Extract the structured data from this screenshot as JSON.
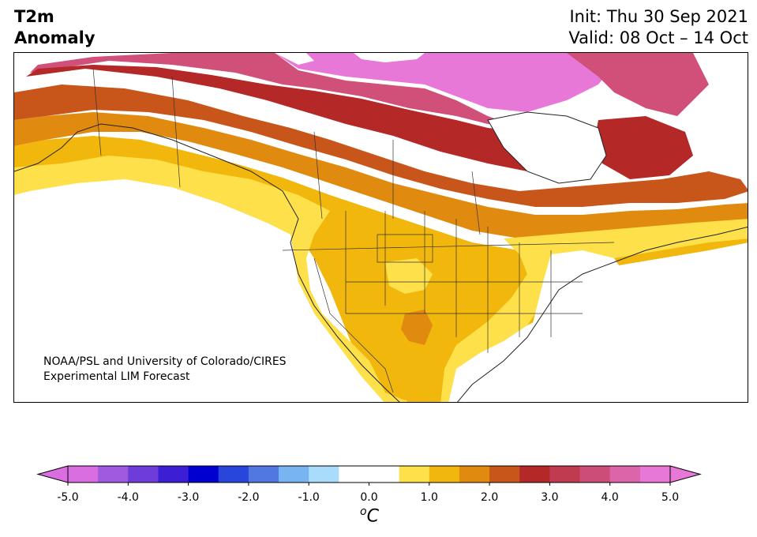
{
  "header": {
    "title_line1": "T2m",
    "title_line2": "Anomaly",
    "init_text": "Init: Thu 30 Sep 2021",
    "valid_text": "Valid: 08 Oct – 14 Oct"
  },
  "credit": {
    "line1": "NOAA/PSL and University of Colorado/CIRES",
    "line2": "Experimental LIM Forecast"
  },
  "colorbar": {
    "unit_sup": "o",
    "unit_main": "C",
    "ticks": [
      "-5.0",
      "-4.0",
      "-3.0",
      "-2.0",
      "-1.0",
      "0.0",
      "1.0",
      "2.0",
      "3.0",
      "4.0",
      "5.0"
    ],
    "colors": [
      "#d86ee0",
      "#a05ae0",
      "#6e3cd8",
      "#3c1ed4",
      "#0000d0",
      "#2846dc",
      "#5078e0",
      "#78b4f0",
      "#a8dcfa",
      "#ffffff",
      "#ffffff",
      "#fde04a",
      "#f2b70c",
      "#e08a10",
      "#c8561a",
      "#b42828",
      "#c03a50",
      "#cc4e78",
      "#dc64a8",
      "#e878d8"
    ],
    "extend_low_color": "#d86ee0",
    "extend_high_color": "#e878d8"
  },
  "map": {
    "region": "North America",
    "anomaly_colors": {
      "very_high": "#e878d8",
      "high_pink": "#d0507a",
      "dark_red": "#b42828",
      "red_orange": "#c8561a",
      "orange": "#e08a10",
      "amber": "#f2b70c",
      "yellow": "#fde04a"
    }
  }
}
